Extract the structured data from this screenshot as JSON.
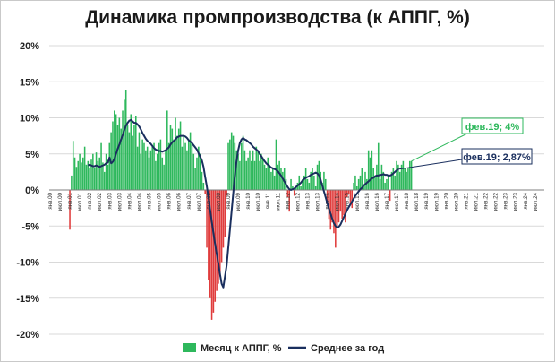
{
  "chart_data": {
    "type": "bar",
    "title": "Динамика промпроизводства (к АППГ, %)",
    "ylim": [
      -20,
      20
    ],
    "y_ticks": [
      20,
      15,
      10,
      5,
      0,
      -5,
      -10,
      -15,
      -20
    ],
    "y_tick_labels": [
      "20%",
      "15%",
      "10%",
      "5%",
      "0%",
      "-5%",
      "-10%",
      "-15%",
      "-20%"
    ],
    "x_tick_labels": [
      "янв.00",
      "июл.00",
      "янв.01",
      "июл.01",
      "янв.02",
      "июл.02",
      "янв.03",
      "июл.03",
      "янв.04",
      "июл.04",
      "янв.05",
      "июл.05",
      "янв.06",
      "июл.06",
      "янв.07",
      "июл.07",
      "янв.08",
      "июл.08",
      "янв.09",
      "июл.09",
      "янв.10",
      "июл.10",
      "янв.11",
      "июл.11",
      "янв.12",
      "июл.12",
      "янв.13",
      "июл.13",
      "янв.14",
      "июл.14",
      "янв.15",
      "июл.15",
      "янв.16",
      "июл.16",
      "янв.17",
      "июл.17",
      "янв.18",
      "июл.18",
      "янв.19",
      "июл.19",
      "янв.20",
      "июл.20",
      "янв.21",
      "июл.21",
      "янв.22",
      "июл.22",
      "янв.23",
      "июл.23",
      "янв.24",
      "июл.24"
    ],
    "series": [
      {
        "name": "Месяц к АППГ, %",
        "kind": "bar",
        "color_positive": "#2eb85c",
        "color_negative": "#e03c3c",
        "start": "янв.01",
        "values": [
          -5.5,
          2.0,
          6.8,
          4.5,
          3.2,
          4.0,
          5.0,
          3.8,
          4.5,
          6.0,
          3.5,
          4.0,
          3.0,
          4.2,
          5.0,
          3.0,
          5.2,
          4.0,
          4.5,
          6.5,
          3.8,
          2.5,
          5.0,
          3.5,
          6.5,
          8.0,
          9.5,
          11.0,
          10.5,
          9.0,
          10.0,
          8.5,
          11.0,
          12.5,
          13.8,
          9.0,
          8.0,
          10.5,
          7.5,
          9.0,
          10.2,
          6.0,
          8.0,
          5.0,
          7.0,
          6.5,
          5.5,
          6.0,
          4.5,
          5.5,
          6.0,
          6.5,
          4.0,
          5.0,
          6.5,
          7.0,
          4.5,
          3.5,
          5.5,
          11.0,
          6.5,
          9.0,
          8.5,
          7.0,
          10.0,
          7.5,
          8.5,
          9.5,
          6.0,
          7.5,
          6.5,
          5.5,
          7.0,
          8.0,
          6.5,
          5.0,
          3.0,
          4.5,
          6.0,
          5.0,
          2.5,
          1.0,
          -0.5,
          -8.0,
          -12.5,
          -15.0,
          -18.0,
          -17.0,
          -15.5,
          -14.0,
          -13.0,
          -12.0,
          -10.0,
          -8.0,
          -6.5,
          -0.8,
          6.5,
          7.0,
          8.0,
          7.5,
          6.5,
          5.5,
          5.0,
          4.0,
          6.5,
          7.5,
          5.5,
          4.0,
          4.5,
          5.5,
          4.0,
          5.5,
          4.0,
          6.0,
          5.5,
          4.0,
          5.0,
          4.5,
          3.5,
          3.0,
          4.5,
          3.5,
          2.5,
          3.0,
          2.0,
          7.0,
          3.5,
          4.0,
          3.0,
          2.5,
          3.0,
          1.5,
          -1.0,
          -3.0,
          1.5,
          0.5,
          -0.8,
          0.5,
          1.0,
          2.0,
          0.5,
          1.5,
          2.0,
          3.0,
          1.5,
          1.0,
          2.5,
          3.0,
          2.0,
          0.5,
          3.5,
          4.0,
          2.5,
          1.0,
          2.5,
          1.5,
          -2.0,
          -4.0,
          -5.5,
          -4.5,
          -6.0,
          -8.0,
          -5.0,
          -4.5,
          -3.0,
          -4.0,
          -3.5,
          -4.5,
          -1.0,
          -0.5,
          -2.0,
          -2.5,
          1.0,
          2.0,
          0.5,
          1.5,
          2.0,
          3.0,
          0.5,
          2.5,
          1.5,
          5.5,
          4.5,
          5.5,
          3.0,
          2.0,
          3.5,
          6.5,
          1.5,
          3.5,
          2.5,
          1.0,
          1.5,
          2.0,
          -1.5,
          2.5,
          3.0,
          2.0,
          4.0,
          3.5,
          2.5,
          3.5,
          4.0,
          3.0,
          2.5,
          3.0,
          4.0,
          4.0
        ]
      },
      {
        "name": "Среднее за год",
        "kind": "line",
        "color": "#1a2f5e",
        "start": "дек.01",
        "values": [
          3.4,
          3.5,
          3.4,
          3.3,
          3.3,
          3.4,
          3.3,
          3.2,
          3.3,
          3.4,
          3.5,
          3.7,
          3.8,
          4.5,
          3.7,
          3.9,
          4.3,
          5.0,
          5.7,
          6.3,
          7.0,
          7.6,
          8.3,
          8.9,
          9.3,
          9.6,
          9.7,
          9.5,
          9.3,
          9.3,
          9.1,
          8.8,
          8.4,
          7.9,
          7.5,
          7.1,
          6.8,
          6.6,
          6.4,
          6.1,
          5.8,
          5.6,
          5.5,
          5.4,
          5.4,
          5.3,
          5.4,
          5.5,
          5.7,
          5.9,
          6.3,
          6.6,
          6.8,
          7.0,
          7.3,
          7.4,
          7.5,
          7.5,
          7.5,
          7.4,
          7.2,
          6.9,
          6.7,
          6.5,
          6.2,
          5.9,
          5.6,
          5.1,
          4.6,
          4.1,
          3.2,
          1.8,
          0.5,
          -1.0,
          -2.7,
          -4.4,
          -6.0,
          -7.5,
          -8.9,
          -10.2,
          -11.7,
          -13.0,
          -13.5,
          -12.0,
          -10.5,
          -8.0,
          -5.5,
          -3.0,
          -0.5,
          2.0,
          4.0,
          5.5,
          6.5,
          7.0,
          7.2,
          7.0,
          6.9,
          6.7,
          6.5,
          6.3,
          6.0,
          5.8,
          5.6,
          5.4,
          5.0,
          4.7,
          4.3,
          4.0,
          3.7,
          3.5,
          3.3,
          3.1,
          3.0,
          2.9,
          2.8,
          2.6,
          2.3,
          2.0,
          1.6,
          1.2,
          0.8,
          0.4,
          0.1,
          0.0,
          0.1,
          0.2,
          0.4,
          0.6,
          0.8,
          1.0,
          1.3,
          1.5,
          1.7,
          1.8,
          1.9,
          2.1,
          2.2,
          2.3,
          2.4,
          2.3,
          2.0,
          1.4,
          0.6,
          -0.2,
          -1.0,
          -1.8,
          -2.6,
          -3.3,
          -4.0,
          -4.6,
          -5.0,
          -5.2,
          -5.1,
          -4.8,
          -4.3,
          -3.8,
          -3.3,
          -2.8,
          -2.4,
          -2.0,
          -1.6,
          -1.2,
          -0.8,
          -0.5,
          -0.2,
          0.1,
          0.3,
          0.6,
          0.8,
          1.0,
          1.2,
          1.4,
          1.6,
          1.7,
          1.9,
          2.0,
          2.0,
          2.1,
          2.1,
          2.2,
          2.1,
          2.1,
          2.0,
          2.0,
          2.1,
          2.3,
          2.5,
          2.7,
          2.87
        ]
      }
    ],
    "annotations": [
      {
        "text": "фев.19; 4%",
        "color": "#2eb85c"
      },
      {
        "text": "фев.19; 2,87%",
        "color": "#1a2f5e"
      }
    ],
    "legend": {
      "position": "bottom"
    },
    "grid": true
  }
}
